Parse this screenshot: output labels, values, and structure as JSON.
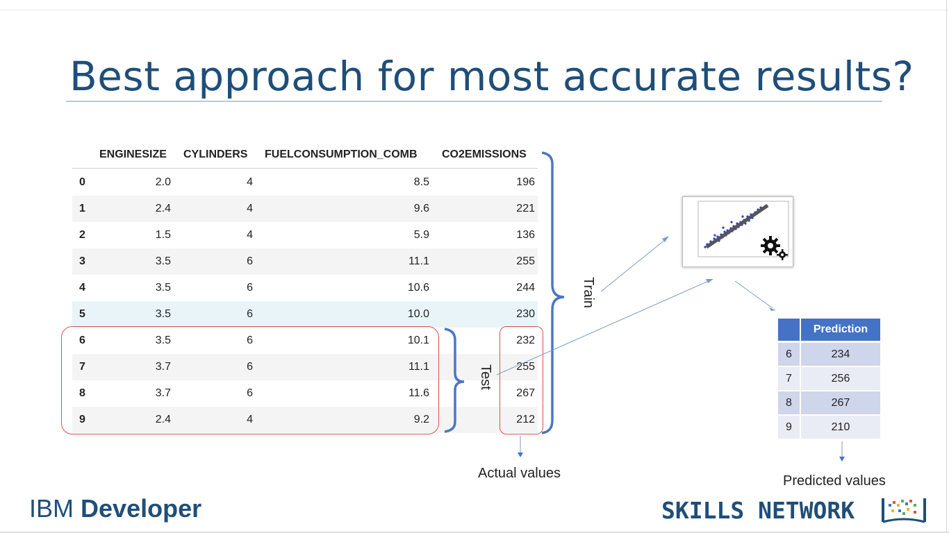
{
  "slide": {
    "title": "Best approach for most accurate results?",
    "table": {
      "headers": [
        "ENGINESIZE",
        "CYLINDERS",
        "FUELCONSUMPTION_COMB",
        "CO2EMISSIONS"
      ],
      "rows": [
        {
          "idx": "0",
          "enginesize": "2.0",
          "cylinders": "4",
          "fuel": "8.5",
          "co2": "196"
        },
        {
          "idx": "1",
          "enginesize": "2.4",
          "cylinders": "4",
          "fuel": "9.6",
          "co2": "221"
        },
        {
          "idx": "2",
          "enginesize": "1.5",
          "cylinders": "4",
          "fuel": "5.9",
          "co2": "136"
        },
        {
          "idx": "3",
          "enginesize": "3.5",
          "cylinders": "6",
          "fuel": "11.1",
          "co2": "255"
        },
        {
          "idx": "4",
          "enginesize": "3.5",
          "cylinders": "6",
          "fuel": "10.6",
          "co2": "244"
        },
        {
          "idx": "5",
          "enginesize": "3.5",
          "cylinders": "6",
          "fuel": "10.0",
          "co2": "230"
        },
        {
          "idx": "6",
          "enginesize": "3.5",
          "cylinders": "6",
          "fuel": "10.1",
          "co2": "232"
        },
        {
          "idx": "7",
          "enginesize": "3.7",
          "cylinders": "6",
          "fuel": "11.1",
          "co2": "255"
        },
        {
          "idx": "8",
          "enginesize": "3.7",
          "cylinders": "6",
          "fuel": "11.6",
          "co2": "267"
        },
        {
          "idx": "9",
          "enginesize": "2.4",
          "cylinders": "4",
          "fuel": "9.2",
          "co2": "212"
        }
      ]
    },
    "labels": {
      "train": "Train",
      "test": "Test",
      "actual_values": "Actual values",
      "predicted_values": "Predicted values"
    },
    "prediction_table": {
      "header": "Prediction",
      "rows": [
        {
          "idx": "6",
          "value": "234"
        },
        {
          "idx": "7",
          "value": "256"
        },
        {
          "idx": "8",
          "value": "267"
        },
        {
          "idx": "9",
          "value": "210"
        }
      ]
    },
    "colors": {
      "title": "#1f4e79",
      "brace": "#4a78c2",
      "red_box": "#d9534f",
      "pred_header": "#4472c4",
      "arrow": "#7a9cc6"
    },
    "icons": [
      "gears-icon",
      "scatter-plot-thumbnail"
    ]
  },
  "branding": {
    "ibm_prefix": "IBM",
    "ibm_suffix": "Developer",
    "skills_network": "SKILLS NETWORK"
  }
}
